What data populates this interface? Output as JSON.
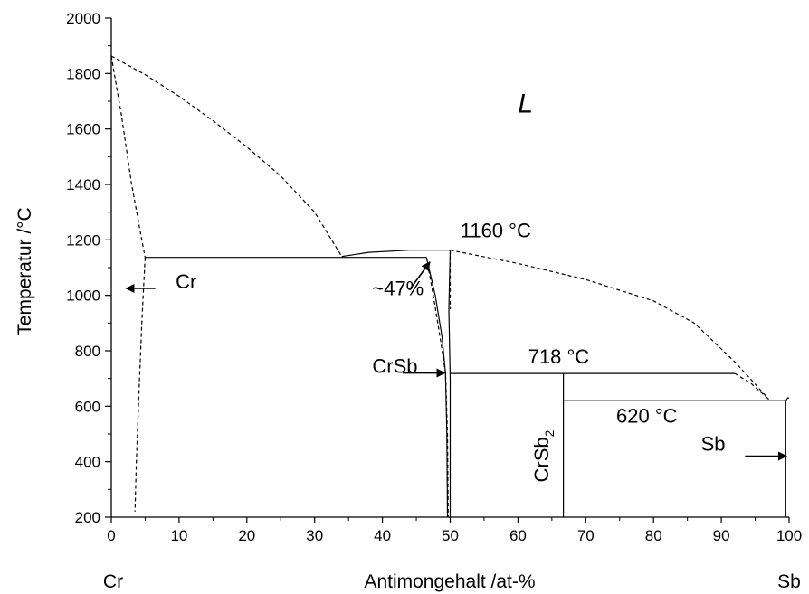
{
  "chart_data": {
    "type": "line",
    "xlabel": "Antimongehalt /at-%",
    "ylabel": "Temperatur /°C",
    "xlim": [
      0,
      100
    ],
    "ylim": [
      200,
      2000
    ],
    "x_ticks": [
      0,
      10,
      20,
      30,
      40,
      50,
      60,
      70,
      80,
      90,
      100
    ],
    "y_ticks": [
      200,
      400,
      600,
      800,
      1000,
      1200,
      1400,
      1600,
      1800,
      2000
    ],
    "x_tick_labels": [
      "0",
      "10",
      "20",
      "30",
      "40",
      "50",
      "60",
      "70",
      "80",
      "90",
      "100"
    ],
    "y_tick_labels": [
      "200",
      "400",
      "600",
      "800",
      "1000",
      "1200",
      "1400",
      "1600",
      "1800",
      "2000"
    ],
    "x_end_labels": {
      "left": "Cr",
      "right": "Sb"
    },
    "grid": false,
    "series": [
      {
        "style": "dashed",
        "points": [
          [
            0,
            1863
          ],
          [
            5,
            1796
          ],
          [
            10,
            1718
          ],
          [
            15,
            1630
          ],
          [
            20,
            1535
          ],
          [
            25,
            1430
          ],
          [
            30,
            1300
          ],
          [
            34,
            1140
          ]
        ]
      },
      {
        "style": "dashed",
        "points": [
          [
            0,
            1863
          ],
          [
            1.5,
            1650
          ],
          [
            3,
            1400
          ],
          [
            4.5,
            1200
          ],
          [
            5,
            1137
          ]
        ]
      },
      {
        "style": "dashed",
        "points": [
          [
            5,
            1137
          ],
          [
            4.5,
            900
          ],
          [
            4,
            600
          ],
          [
            3.7,
            400
          ],
          [
            3.5,
            220
          ]
        ]
      },
      {
        "style": "solid",
        "points": [
          [
            5,
            1137
          ],
          [
            34,
            1137
          ],
          [
            46.5,
            1137
          ]
        ]
      },
      {
        "style": "solid",
        "points": [
          [
            34,
            1140
          ],
          [
            38,
            1155
          ],
          [
            44,
            1163
          ],
          [
            50,
            1163
          ]
        ]
      },
      {
        "style": "dashed",
        "points": [
          [
            50,
            1163
          ],
          [
            60,
            1115
          ],
          [
            70,
            1057
          ],
          [
            80,
            980
          ],
          [
            86,
            900
          ],
          [
            92,
            760
          ],
          [
            95,
            680
          ],
          [
            97,
            625
          ]
        ]
      },
      {
        "style": "dashed",
        "points": [
          [
            46.5,
            1137
          ],
          [
            47.5,
            1000
          ],
          [
            48.5,
            850
          ],
          [
            49.3,
            720
          ],
          [
            49.6,
            500
          ],
          [
            49.7,
            200
          ]
        ]
      },
      {
        "style": "solid",
        "points": [
          [
            46.5,
            1137
          ],
          [
            47.8,
            1000
          ],
          [
            48.8,
            850
          ],
          [
            49.3,
            720
          ],
          [
            49.5,
            500
          ],
          [
            49.6,
            200
          ]
        ]
      },
      {
        "style": "solid",
        "points": [
          [
            50,
            1163
          ],
          [
            49.8,
            950
          ],
          [
            50,
            700
          ],
          [
            50,
            200
          ]
        ]
      },
      {
        "style": "dashed",
        "points": [
          [
            50,
            1163
          ],
          [
            50,
            950
          ]
        ]
      },
      {
        "style": "solid",
        "points": [
          [
            50,
            718
          ],
          [
            92,
            718
          ]
        ]
      },
      {
        "style": "dashed",
        "points": [
          [
            92,
            718
          ],
          [
            94.5,
            680
          ],
          [
            97,
            625
          ]
        ]
      },
      {
        "style": "solid",
        "points": [
          [
            66.7,
            718
          ],
          [
            66.7,
            200
          ]
        ]
      },
      {
        "style": "solid",
        "points": [
          [
            66.7,
            620
          ],
          [
            99.5,
            620
          ]
        ]
      },
      {
        "style": "solid",
        "points": [
          [
            99.5,
            620
          ],
          [
            99.8,
            630
          ],
          [
            100,
            630
          ]
        ]
      },
      {
        "style": "solid",
        "points": [
          [
            99.5,
            620
          ],
          [
            99.5,
            200
          ]
        ]
      }
    ],
    "annotations": [
      {
        "text": "L",
        "x": 60,
        "y": 1660,
        "italic": true
      },
      {
        "text": "1160 °C",
        "x": 51.5,
        "y": 1210
      },
      {
        "text": "~47%",
        "x": 38.5,
        "y": 1000
      },
      {
        "text": "Cr",
        "x": 9.5,
        "y": 1025
      },
      {
        "text": "CrSb",
        "x": 38.5,
        "y": 720
      },
      {
        "text": "718 °C",
        "x": 61.5,
        "y": 755
      },
      {
        "text": "620 °C",
        "x": 74.5,
        "y": 540
      },
      {
        "text": "Sb",
        "x": 87,
        "y": 440
      }
    ],
    "vertical_annotation": {
      "text": "CrSb",
      "subscript": "2",
      "x": 64.5,
      "y": 420
    },
    "arrows": [
      {
        "from": [
          6.5,
          1025
        ],
        "to": [
          2.2,
          1025
        ]
      },
      {
        "from": [
          44,
          1020
        ],
        "to": [
          47,
          1120
        ]
      },
      {
        "from": [
          43,
          720
        ],
        "to": [
          49.2,
          720
        ]
      },
      {
        "from": [
          93.5,
          420
        ],
        "to": [
          99.6,
          420
        ]
      }
    ]
  }
}
